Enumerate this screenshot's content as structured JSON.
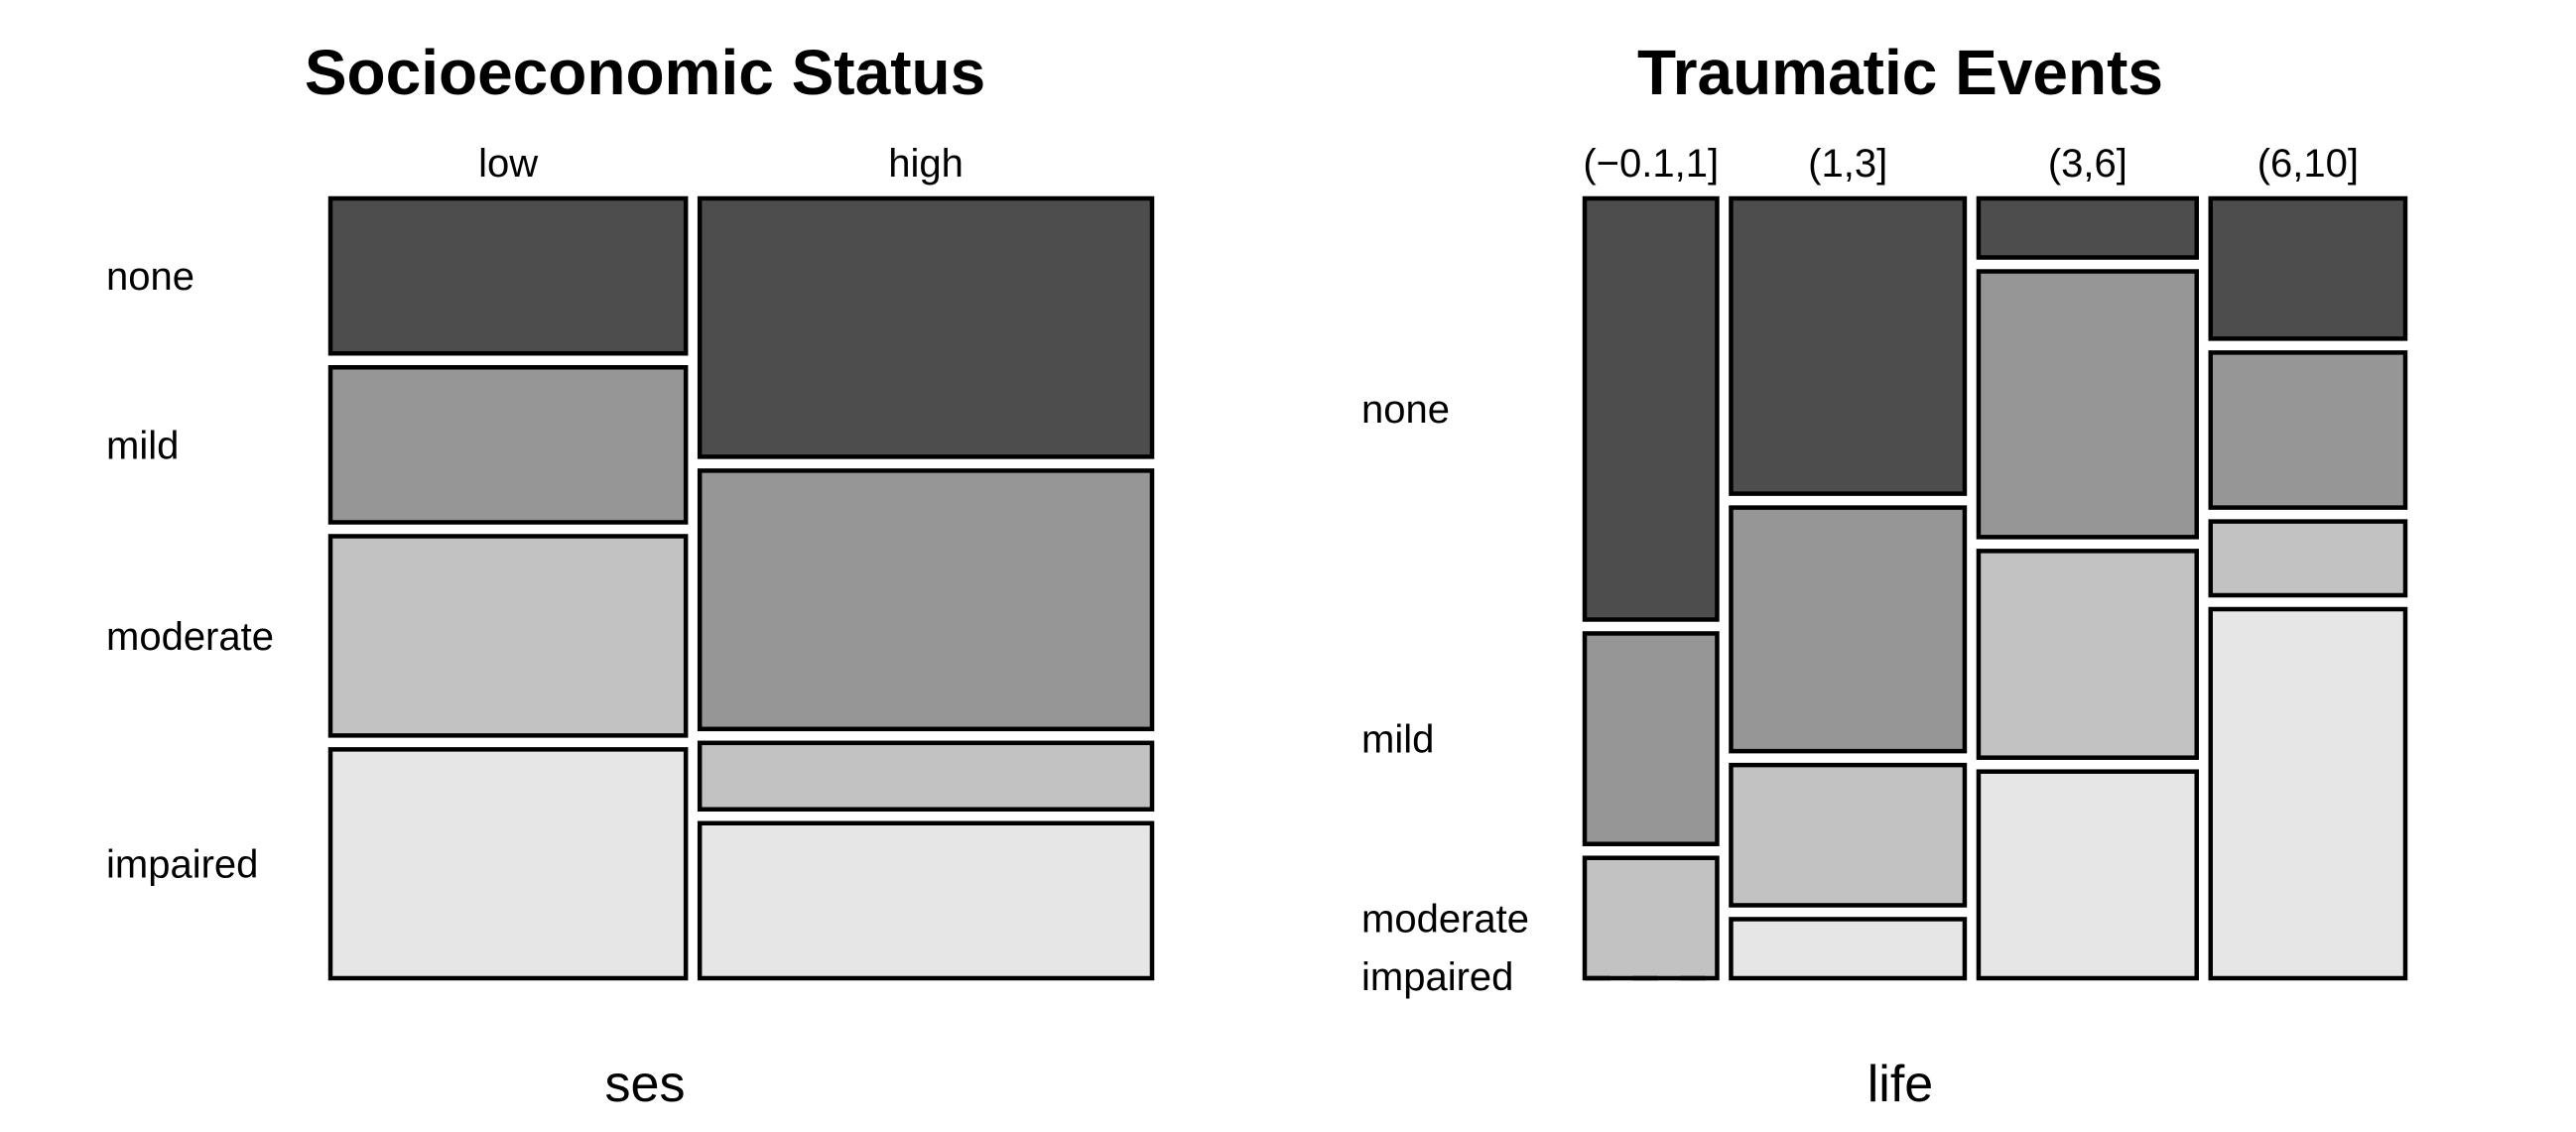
{
  "chart_data": [
    {
      "type": "mosaic",
      "title": "Socioeconomic Status",
      "xlabel": "ses",
      "categories": [
        "low",
        "high"
      ],
      "levels": [
        "none",
        "mild",
        "moderate",
        "impaired"
      ],
      "colors": [
        "#4d4d4d",
        "#969696",
        "#c2c2c2",
        "#e6e6e6"
      ],
      "proportions": [
        [
          0.21,
          0.21,
          0.27,
          0.31
        ],
        [
          0.35,
          0.35,
          0.09,
          0.21
        ]
      ],
      "widths": [
        0.44,
        0.56
      ],
      "level_labels_from": 0
    },
    {
      "type": "mosaic",
      "title": "Traumatic Events",
      "xlabel": "life",
      "categories": [
        "(−0.1,1]",
        "(1,3]",
        "(3,6]",
        "(6,10]"
      ],
      "levels": [
        "none",
        "mild",
        "moderate",
        "impaired"
      ],
      "colors": [
        "#4d4d4d",
        "#969696",
        "#c2c2c2",
        "#e6e6e6"
      ],
      "proportions": [
        [
          0.56,
          0.28,
          0.16,
          0.0
        ],
        [
          0.4,
          0.33,
          0.19,
          0.08
        ],
        [
          0.08,
          0.36,
          0.28,
          0.28
        ],
        [
          0.19,
          0.21,
          0.1,
          0.5
        ]
      ],
      "widths": [
        0.17,
        0.3,
        0.28,
        0.25
      ],
      "level_labels_from": 0
    }
  ]
}
